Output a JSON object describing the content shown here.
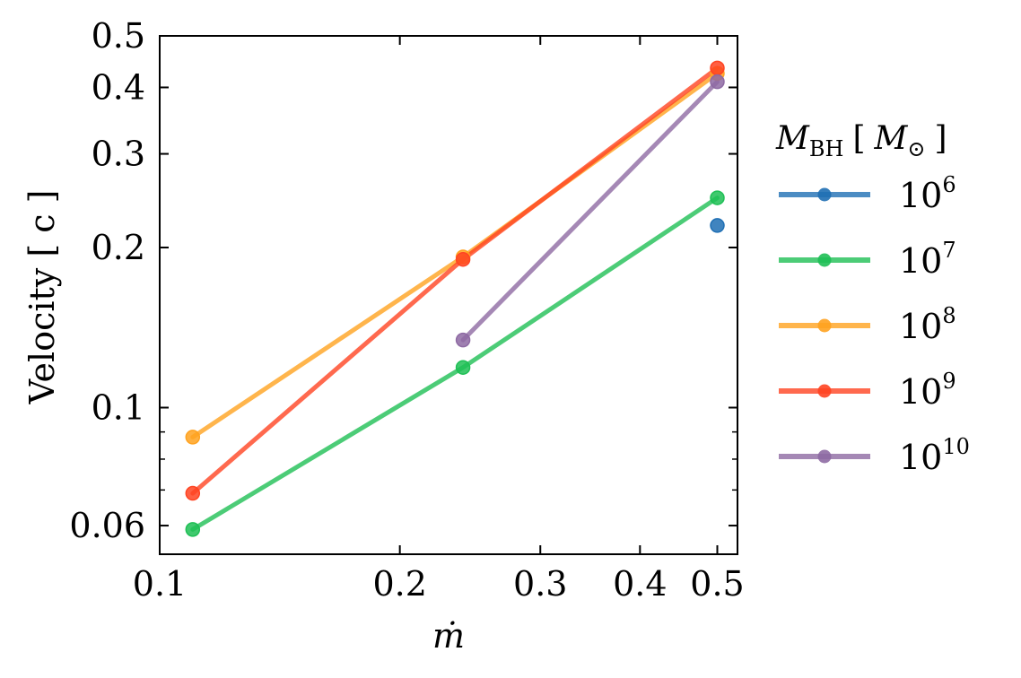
{
  "chart_data": {
    "type": "line",
    "xscale": "log",
    "yscale": "log",
    "xlim": [
      0.1,
      0.53
    ],
    "ylim": [
      0.053,
      0.5
    ],
    "xlabel": "ṁ",
    "ylabel": "Velocity [ c ]",
    "xticks": [
      {
        "value": 0.1,
        "label": "0.1"
      },
      {
        "value": 0.2,
        "label": "0.2"
      },
      {
        "value": 0.3,
        "label": "0.3"
      },
      {
        "value": 0.4,
        "label": "0.4"
      },
      {
        "value": 0.5,
        "label": "0.5"
      }
    ],
    "yticks": [
      {
        "value": 0.06,
        "label": "0.06"
      },
      {
        "value": 0.1,
        "label": "0.1"
      },
      {
        "value": 0.2,
        "label": "0.2"
      },
      {
        "value": 0.3,
        "label": "0.3"
      },
      {
        "value": 0.4,
        "label": "0.4"
      },
      {
        "value": 0.5,
        "label": "0.5"
      }
    ],
    "legend": {
      "title_main": "M",
      "title_sub": "BH",
      "title_unit_open": "[",
      "title_unit": "M",
      "title_unit_sub": "⊙",
      "title_unit_close": "]",
      "placement": "right"
    },
    "series": [
      {
        "name_base": "10",
        "name_exp": "6",
        "color": "#1f6fb4",
        "points": [
          [
            0.5,
            0.22
          ]
        ]
      },
      {
        "name_base": "10",
        "name_exp": "7",
        "color": "#1fbf55",
        "points": [
          [
            0.11,
            0.059
          ],
          [
            0.24,
            0.119
          ],
          [
            0.5,
            0.248
          ]
        ]
      },
      {
        "name_base": "10",
        "name_exp": "8",
        "color": "#ffa21f",
        "points": [
          [
            0.11,
            0.088
          ],
          [
            0.24,
            0.192
          ],
          [
            0.5,
            0.425
          ]
        ]
      },
      {
        "name_base": "10",
        "name_exp": "9",
        "color": "#ff4422",
        "points": [
          [
            0.11,
            0.069
          ],
          [
            0.24,
            0.19
          ],
          [
            0.5,
            0.435
          ]
        ]
      },
      {
        "name_base": "10",
        "name_exp": "10",
        "color": "#8e6aa3",
        "points": [
          [
            0.24,
            0.134
          ],
          [
            0.5,
            0.41
          ]
        ]
      }
    ]
  }
}
